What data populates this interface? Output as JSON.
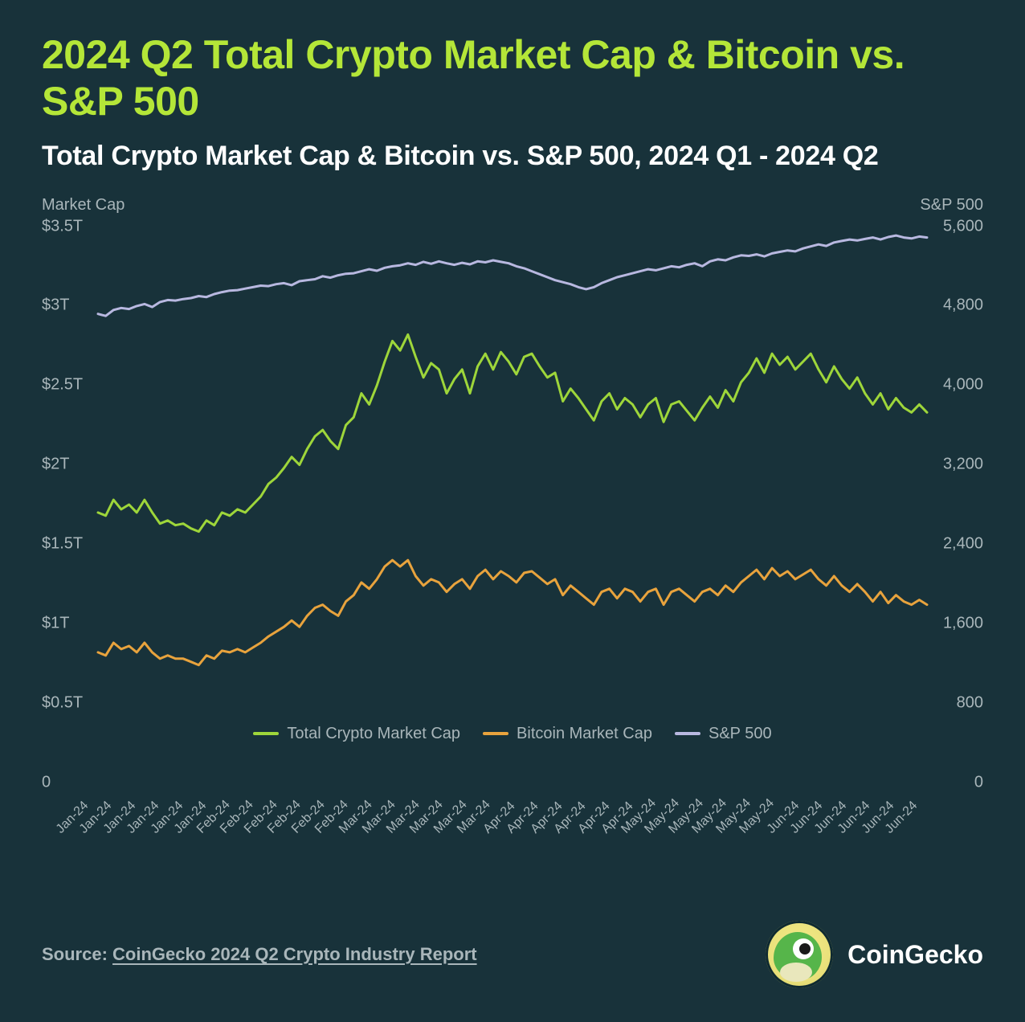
{
  "background_color": "#18323a",
  "title": {
    "text": "2024 Q2 Total Crypto Market Cap & Bitcoin vs. S&P 500",
    "color": "#b4e638",
    "fontsize": 50,
    "fontweight": 800
  },
  "subtitle": {
    "text": "Total Crypto Market Cap & Bitcoin vs. S&P 500, 2024 Q1 - 2024 Q2",
    "color": "#ffffff",
    "fontsize": 34,
    "fontweight": 700
  },
  "chart": {
    "type": "line",
    "tick_color": "#a9b6ba",
    "tick_fontsize": 20,
    "xtick_fontsize": 16,
    "line_width": 3,
    "left_axis": {
      "title": "Market Cap",
      "min": 0,
      "max": 3.5,
      "ticks": [
        {
          "v": 0,
          "label": "0"
        },
        {
          "v": 0.5,
          "label": "$0.5T"
        },
        {
          "v": 1.0,
          "label": "$1T"
        },
        {
          "v": 1.5,
          "label": "$1.5T"
        },
        {
          "v": 2.0,
          "label": "$2T"
        },
        {
          "v": 2.5,
          "label": "$2.5T"
        },
        {
          "v": 3.0,
          "label": "$3T"
        },
        {
          "v": 3.5,
          "label": "$3.5T"
        }
      ]
    },
    "right_axis": {
      "title": "S&P 500",
      "min": 0,
      "max": 5600,
      "ticks": [
        {
          "v": 0,
          "label": "0"
        },
        {
          "v": 800,
          "label": "800"
        },
        {
          "v": 1600,
          "label": "1,600"
        },
        {
          "v": 2400,
          "label": "2,400"
        },
        {
          "v": 3200,
          "label": "3,200"
        },
        {
          "v": 4000,
          "label": "4,000"
        },
        {
          "v": 4800,
          "label": "4,800"
        },
        {
          "v": 5600,
          "label": "5,600"
        }
      ]
    },
    "x_labels": [
      "Jan-24",
      "Jan-24",
      "Jan-24",
      "Jan-24",
      "Jan-24",
      "Jan-24",
      "Feb-24",
      "Feb-24",
      "Feb-24",
      "Feb-24",
      "Feb-24",
      "Feb-24",
      "Mar-24",
      "Mar-24",
      "Mar-24",
      "Mar-24",
      "Mar-24",
      "Mar-24",
      "Apr-24",
      "Apr-24",
      "Apr-24",
      "Apr-24",
      "Apr-24",
      "Apr-24",
      "May-24",
      "May-24",
      "May-24",
      "May-24",
      "May-24",
      "May-24",
      "Jun-24",
      "Jun-24",
      "Jun-24",
      "Jun-24",
      "Jun-24",
      "Jun-24"
    ],
    "series": [
      {
        "name": "Total Crypto Market Cap",
        "color": "#9ed63a",
        "axis": "left",
        "values": [
          1.7,
          1.68,
          1.78,
          1.72,
          1.75,
          1.7,
          1.78,
          1.7,
          1.63,
          1.65,
          1.62,
          1.63,
          1.6,
          1.58,
          1.65,
          1.62,
          1.7,
          1.68,
          1.72,
          1.7,
          1.75,
          1.8,
          1.88,
          1.92,
          1.98,
          2.05,
          2.0,
          2.1,
          2.18,
          2.22,
          2.15,
          2.1,
          2.25,
          2.3,
          2.45,
          2.38,
          2.5,
          2.65,
          2.78,
          2.72,
          2.82,
          2.68,
          2.55,
          2.64,
          2.6,
          2.45,
          2.54,
          2.6,
          2.45,
          2.62,
          2.7,
          2.6,
          2.71,
          2.65,
          2.57,
          2.68,
          2.7,
          2.62,
          2.55,
          2.58,
          2.4,
          2.48,
          2.42,
          2.35,
          2.28,
          2.4,
          2.45,
          2.35,
          2.42,
          2.38,
          2.3,
          2.38,
          2.42,
          2.27,
          2.38,
          2.4,
          2.34,
          2.28,
          2.36,
          2.43,
          2.36,
          2.47,
          2.4,
          2.52,
          2.58,
          2.67,
          2.58,
          2.7,
          2.63,
          2.68,
          2.6,
          2.65,
          2.7,
          2.6,
          2.52,
          2.62,
          2.54,
          2.48,
          2.55,
          2.45,
          2.38,
          2.45,
          2.35,
          2.42,
          2.36,
          2.33,
          2.38,
          2.33
        ],
        "n": 108
      },
      {
        "name": "Bitcoin Market Cap",
        "color": "#e8a33d",
        "axis": "left",
        "values": [
          0.82,
          0.8,
          0.88,
          0.84,
          0.86,
          0.82,
          0.88,
          0.82,
          0.78,
          0.8,
          0.78,
          0.78,
          0.76,
          0.74,
          0.8,
          0.78,
          0.83,
          0.82,
          0.84,
          0.82,
          0.85,
          0.88,
          0.92,
          0.95,
          0.98,
          1.02,
          0.98,
          1.05,
          1.1,
          1.12,
          1.08,
          1.05,
          1.14,
          1.18,
          1.26,
          1.22,
          1.28,
          1.36,
          1.4,
          1.36,
          1.4,
          1.3,
          1.24,
          1.28,
          1.26,
          1.2,
          1.25,
          1.28,
          1.22,
          1.3,
          1.34,
          1.28,
          1.33,
          1.3,
          1.26,
          1.32,
          1.33,
          1.29,
          1.25,
          1.28,
          1.18,
          1.24,
          1.2,
          1.16,
          1.12,
          1.2,
          1.22,
          1.16,
          1.22,
          1.2,
          1.14,
          1.2,
          1.22,
          1.12,
          1.2,
          1.22,
          1.18,
          1.14,
          1.2,
          1.22,
          1.18,
          1.24,
          1.2,
          1.26,
          1.3,
          1.34,
          1.28,
          1.35,
          1.3,
          1.33,
          1.28,
          1.31,
          1.34,
          1.28,
          1.24,
          1.3,
          1.24,
          1.2,
          1.25,
          1.2,
          1.14,
          1.2,
          1.13,
          1.18,
          1.14,
          1.12,
          1.15,
          1.12
        ],
        "n": 108
      },
      {
        "name": "S&P 500",
        "color": "#b8b8e0",
        "axis": "right",
        "values": [
          4720,
          4700,
          4760,
          4780,
          4770,
          4800,
          4820,
          4790,
          4840,
          4860,
          4855,
          4870,
          4880,
          4900,
          4890,
          4920,
          4940,
          4955,
          4960,
          4975,
          4990,
          5005,
          5000,
          5020,
          5030,
          5010,
          5050,
          5060,
          5070,
          5100,
          5085,
          5110,
          5125,
          5130,
          5150,
          5170,
          5155,
          5185,
          5200,
          5210,
          5230,
          5215,
          5245,
          5225,
          5250,
          5230,
          5215,
          5235,
          5220,
          5250,
          5240,
          5260,
          5245,
          5230,
          5200,
          5180,
          5150,
          5120,
          5090,
          5060,
          5040,
          5020,
          4990,
          4970,
          4990,
          5030,
          5060,
          5090,
          5110,
          5130,
          5150,
          5170,
          5160,
          5180,
          5200,
          5190,
          5215,
          5230,
          5200,
          5250,
          5270,
          5260,
          5290,
          5310,
          5305,
          5320,
          5300,
          5330,
          5345,
          5360,
          5350,
          5380,
          5400,
          5420,
          5405,
          5440,
          5455,
          5470,
          5460,
          5475,
          5490,
          5470,
          5495,
          5510,
          5490,
          5480,
          5500,
          5490
        ],
        "n": 108
      }
    ],
    "legend": [
      {
        "label": "Total Crypto Market Cap",
        "color": "#9ed63a"
      },
      {
        "label": "Bitcoin Market Cap",
        "color": "#e8a33d"
      },
      {
        "label": "S&P 500",
        "color": "#b8b8e0"
      }
    ]
  },
  "footer": {
    "source_prefix": "Source: ",
    "source_link": "CoinGecko 2024 Q2 Crypto Industry Report",
    "brand": "CoinGecko"
  }
}
